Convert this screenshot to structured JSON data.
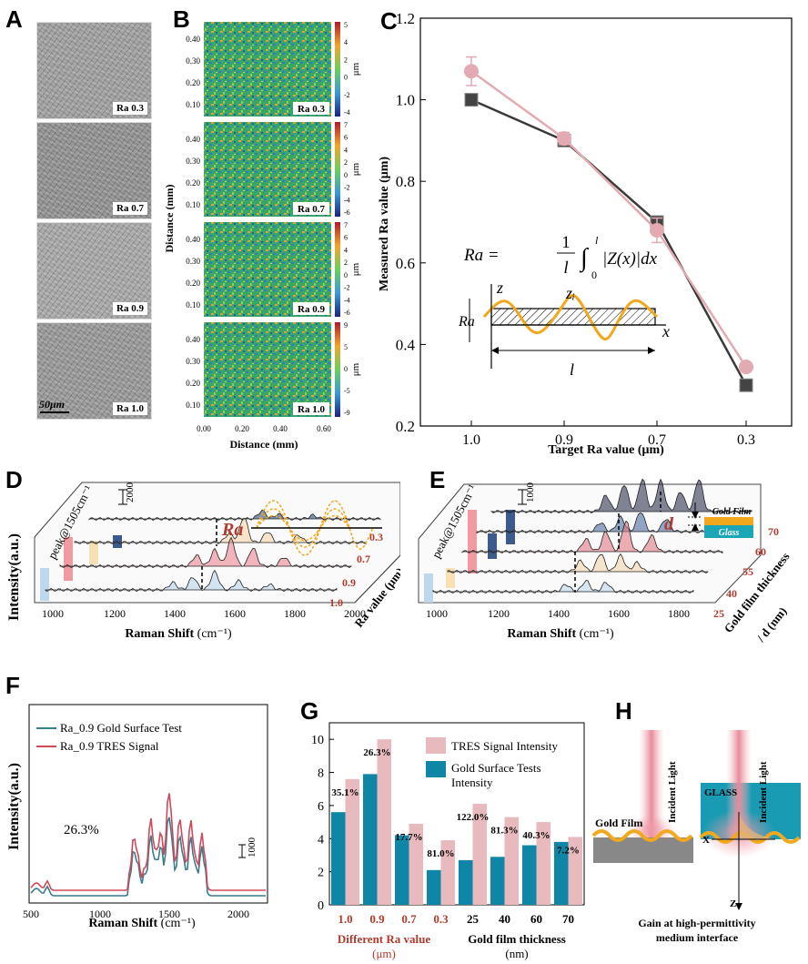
{
  "panels": {
    "A": {
      "label": "A",
      "tiles": [
        "Ra 0.3",
        "Ra 0.7",
        "Ra 0.9",
        "Ra 1.0"
      ],
      "scalebar": "50μm"
    },
    "B": {
      "label": "B",
      "tiles": [
        "Ra 0.3",
        "Ra 0.7",
        "Ra 0.9",
        "Ra 1.0"
      ],
      "yticks": [
        "0.40",
        "0.30",
        "0.20",
        "0.10"
      ],
      "xticks": [
        "0.00",
        "0.20",
        "0.40",
        "0.60"
      ],
      "ylabel": "Distance (mm)",
      "xlabel": "Distance (mm)",
      "colorbar_unit": "μm",
      "colorbars": [
        [
          "5",
          "4",
          "2",
          "0",
          "-2",
          "-4"
        ],
        [
          "7",
          "6",
          "4",
          "2",
          "0",
          "-2",
          "-4",
          "-6"
        ],
        [
          "7",
          "6",
          "4",
          "2",
          "0",
          "-2",
          "-4",
          "-6"
        ],
        [
          "9",
          "5",
          "0",
          "-5",
          "-9"
        ]
      ]
    },
    "C": {
      "label": "C",
      "formula_lhs": "Ra =",
      "formula_frac_num": "1",
      "formula_frac_den": "l",
      "formula_int_upper": "l",
      "formula_int_lower": "0",
      "formula_body": "|Z(x)|dx",
      "schem_z": "z",
      "schem_zi": "zᵢ",
      "schem_ra": "Ra",
      "schem_x": "x",
      "schem_l": "l"
    },
    "D": {
      "label": "D",
      "peak_label": "peak@1505cm⁻¹",
      "scale": "2000",
      "inset_label": "Ra",
      "ylabel": "Intensity(a.u.)",
      "xlabel": "Raman Shift",
      "xlabel_unit": "(cm⁻¹)",
      "xticks": [
        "1000",
        "1200",
        "1400",
        "1600",
        "1800",
        "2000"
      ],
      "depth_ticks": [
        "0.3",
        "0.7",
        "0.9",
        "1.0"
      ],
      "depth_label": "Ra value (μm)"
    },
    "E": {
      "label": "E",
      "peak_label": "peak@1505cm⁻¹",
      "scale": "1000",
      "inset_d": "d",
      "inset_gold": "Gold Film",
      "inset_glass": "Glass",
      "xlabel": "Raman Shift",
      "xlabel_unit": "(cm⁻¹)",
      "xticks": [
        "1000",
        "1200",
        "1400",
        "1600",
        "1800"
      ],
      "depth_ticks": [
        "70",
        "60",
        "55",
        "40",
        "25"
      ],
      "depth_label": "Gold film thickness",
      "depth_label2": "/ d (nm)"
    },
    "F": {
      "label": "F",
      "legend1": "Ra_0.9 Gold Surface Test",
      "legend2": "Ra_0.9 TRES Signal",
      "annotation": "26.3%",
      "scale": "1000",
      "ylabel": "Intensity(a.u.)",
      "xlabel": "Raman Shift",
      "xlabel_unit": "(cm⁻¹)",
      "xticks": [
        "500",
        "1000",
        "1500",
        "2000"
      ]
    },
    "G": {
      "label": "G",
      "legend1": "TRES Signal Intensity",
      "legend2a": "Gold Surface Tests",
      "legend2b": "Intensity",
      "ylabel": "Intensity (×10³)",
      "group1": "Different Ra value",
      "group1_unit": "(μm)",
      "group2": "Gold film thickness",
      "group2_unit": "(nm)"
    },
    "H": {
      "label": "H",
      "gold_film": "Gold Film",
      "incident1": "Incident Light",
      "incident2": "Incident Light",
      "glass": "GLASS",
      "x": "X",
      "z": "Z",
      "caption1": "Gain at high-permittivity",
      "caption2": "medium interface"
    }
  },
  "colors": {
    "gray_series": "#3a3a3a",
    "pink_series": "#e3aab2",
    "red_text": "#b03a2e",
    "teal": "#0f86a6",
    "pink_bar": "#e8b9bd",
    "gold": "#f2a81d"
  },
  "chart_data": [
    {
      "id": "C",
      "type": "line",
      "title": "",
      "xlabel": "Target Ra value (μm)",
      "ylabel": "Measured Ra value (μm)",
      "categories": [
        "1.0",
        "0.9",
        "0.7",
        "0.3"
      ],
      "yticks": [
        "0.2",
        "0.4",
        "0.6",
        "0.8",
        "1.0",
        "1.2"
      ],
      "ylim": [
        0.2,
        1.2
      ],
      "series": [
        {
          "values": [
            1.0,
            0.9,
            0.7,
            0.3
          ],
          "marker": "square",
          "color": "#3a3a3a"
        },
        {
          "values": [
            1.07,
            0.905,
            0.68,
            0.345
          ],
          "err": [
            0.035,
            0.015,
            0.03,
            0.01
          ],
          "marker": "circle",
          "color": "#e3aab2"
        }
      ]
    },
    {
      "id": "G",
      "type": "bar",
      "categories": [
        "1.0",
        "0.9",
        "0.7",
        "0.3",
        "25",
        "40",
        "60",
        "70"
      ],
      "yticks": [
        "0",
        "2",
        "4",
        "6",
        "8",
        "10"
      ],
      "ylim": [
        0,
        11
      ],
      "series": [
        {
          "name": "Gold Surface Tests Intensity",
          "values": [
            5.6,
            7.9,
            4.2,
            2.1,
            2.7,
            2.9,
            3.6,
            3.8
          ],
          "color": "#0f86a6"
        },
        {
          "name": "TRES Signal Intensity",
          "values": [
            7.6,
            10.0,
            4.9,
            3.9,
            6.1,
            5.3,
            5.0,
            4.1
          ],
          "color": "#e8b9bd"
        }
      ],
      "labels": [
        "35.1%",
        "26.3%",
        "17.7%",
        "81.0%",
        "122.0%",
        "81.3%",
        "40.3%",
        "7.2%"
      ]
    }
  ]
}
